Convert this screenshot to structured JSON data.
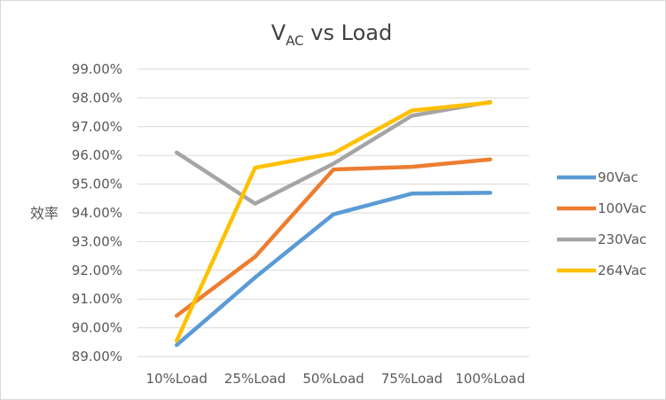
{
  "chart_data": {
    "type": "line",
    "title": {
      "main": "V",
      "sub": "AC",
      "rest": " vs Load"
    },
    "xlabel": "",
    "ylabel": "效率",
    "categories": [
      "10%Load",
      "25%Load",
      "50%Load",
      "75%Load",
      "100%Load"
    ],
    "ylim": [
      89,
      99
    ],
    "yticks": [
      "89.00%",
      "90.00%",
      "91.00%",
      "92.00%",
      "93.00%",
      "94.00%",
      "95.00%",
      "96.00%",
      "97.00%",
      "98.00%",
      "99.00%"
    ],
    "grid": true,
    "legend_position": "right",
    "series": [
      {
        "name": "90Vac",
        "color": "#5b9bd5",
        "values": [
          89.4,
          91.75,
          93.95,
          94.67,
          94.7
        ]
      },
      {
        "name": "100Vac",
        "color": "#ed7d31",
        "values": [
          90.42,
          92.47,
          95.51,
          95.6,
          95.86
        ]
      },
      {
        "name": "230Vac",
        "color": "#a5a5a5",
        "values": [
          96.1,
          94.32,
          95.71,
          97.38,
          97.86
        ]
      },
      {
        "name": "264Vac",
        "color": "#ffc000",
        "values": [
          89.55,
          95.57,
          96.07,
          97.56,
          97.84
        ]
      }
    ]
  }
}
